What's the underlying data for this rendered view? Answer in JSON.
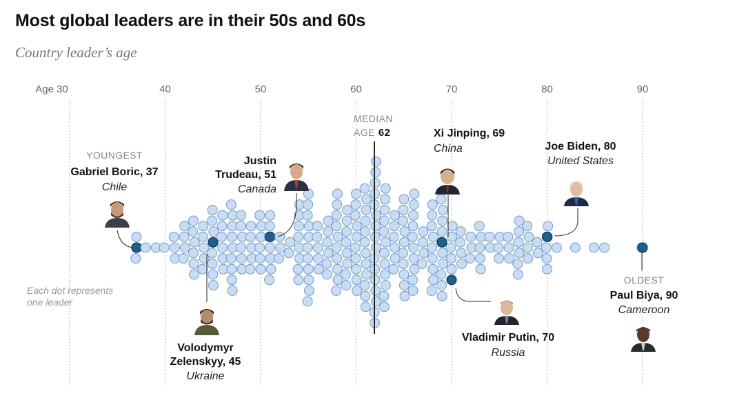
{
  "chart_data": {
    "type": "scatter",
    "title": "Most global leaders are in their 50s and 60s",
    "subtitle": "Country leader’s age",
    "x_axis": {
      "range": [
        30,
        90
      ],
      "ticks": [
        {
          "value": 30,
          "label": "Age 30"
        },
        {
          "value": 40,
          "label": "40"
        },
        {
          "value": 50,
          "label": "50"
        },
        {
          "value": 60,
          "label": "60"
        },
        {
          "value": 70,
          "label": "70"
        },
        {
          "value": 80,
          "label": "80"
        },
        {
          "value": 90,
          "label": "90"
        }
      ]
    },
    "median": {
      "value": 62,
      "label_line1": "MEDIAN",
      "label_line2": "AGE",
      "value_label": "62"
    },
    "note_lines": [
      "Each dot represents",
      "one leader"
    ],
    "youngest_label": "YOUNGEST",
    "oldest_label": "OLDEST",
    "age_counts": [
      {
        "age": 37,
        "count": 3
      },
      {
        "age": 38,
        "count": 1
      },
      {
        "age": 39,
        "count": 1
      },
      {
        "age": 40,
        "count": 1
      },
      {
        "age": 41,
        "count": 3
      },
      {
        "age": 42,
        "count": 4
      },
      {
        "age": 43,
        "count": 6
      },
      {
        "age": 44,
        "count": 5
      },
      {
        "age": 45,
        "count": 8
      },
      {
        "age": 46,
        "count": 6
      },
      {
        "age": 47,
        "count": 9
      },
      {
        "age": 48,
        "count": 6
      },
      {
        "age": 49,
        "count": 5
      },
      {
        "age": 50,
        "count": 6
      },
      {
        "age": 51,
        "count": 7
      },
      {
        "age": 52,
        "count": 3
      },
      {
        "age": 53,
        "count": 2
      },
      {
        "age": 54,
        "count": 8
      },
      {
        "age": 55,
        "count": 11
      },
      {
        "age": 56,
        "count": 5
      },
      {
        "age": 57,
        "count": 6
      },
      {
        "age": 58,
        "count": 10
      },
      {
        "age": 59,
        "count": 8
      },
      {
        "age": 60,
        "count": 10
      },
      {
        "age": 61,
        "count": 12
      },
      {
        "age": 62,
        "count": 16
      },
      {
        "age": 63,
        "count": 12
      },
      {
        "age": 64,
        "count": 6
      },
      {
        "age": 65,
        "count": 10
      },
      {
        "age": 66,
        "count": 10
      },
      {
        "age": 67,
        "count": 4
      },
      {
        "age": 68,
        "count": 9
      },
      {
        "age": 69,
        "count": 10
      },
      {
        "age": 70,
        "count": 5
      },
      {
        "age": 71,
        "count": 4
      },
      {
        "age": 72,
        "count": 3
      },
      {
        "age": 73,
        "count": 5
      },
      {
        "age": 74,
        "count": 2
      },
      {
        "age": 75,
        "count": 3
      },
      {
        "age": 76,
        "count": 3
      },
      {
        "age": 77,
        "count": 6
      },
      {
        "age": 78,
        "count": 4
      },
      {
        "age": 79,
        "count": 2
      },
      {
        "age": 80,
        "count": 5
      },
      {
        "age": 81,
        "count": 1
      },
      {
        "age": 83,
        "count": 1
      },
      {
        "age": 85,
        "count": 1
      },
      {
        "age": 86,
        "count": 1
      },
      {
        "age": 90,
        "count": 1
      }
    ],
    "highlighted": [
      {
        "id": "boric",
        "name_lines": [
          "Gabriel Boric, 37"
        ],
        "country": "Chile",
        "age": 37
      },
      {
        "id": "zelenskyy",
        "name_lines": [
          "Volodymyr",
          "Zelenskyy, 45"
        ],
        "country": "Ukraine",
        "age": 45
      },
      {
        "id": "trudeau",
        "name_lines": [
          "Justin",
          "Trudeau, 51"
        ],
        "country": "Canada",
        "age": 51
      },
      {
        "id": "xi",
        "name_lines": [
          "Xi Jinping, 69"
        ],
        "country": "China",
        "age": 69
      },
      {
        "id": "putin",
        "name_lines": [
          "Vladimir Putin, 70"
        ],
        "country": "Russia",
        "age": 70
      },
      {
        "id": "biden",
        "name_lines": [
          "Joe Biden, 80"
        ],
        "country": "United States",
        "age": 80
      },
      {
        "id": "biya",
        "name_lines": [
          "Paul Biya, 90"
        ],
        "country": "Cameroon",
        "age": 90
      }
    ]
  }
}
